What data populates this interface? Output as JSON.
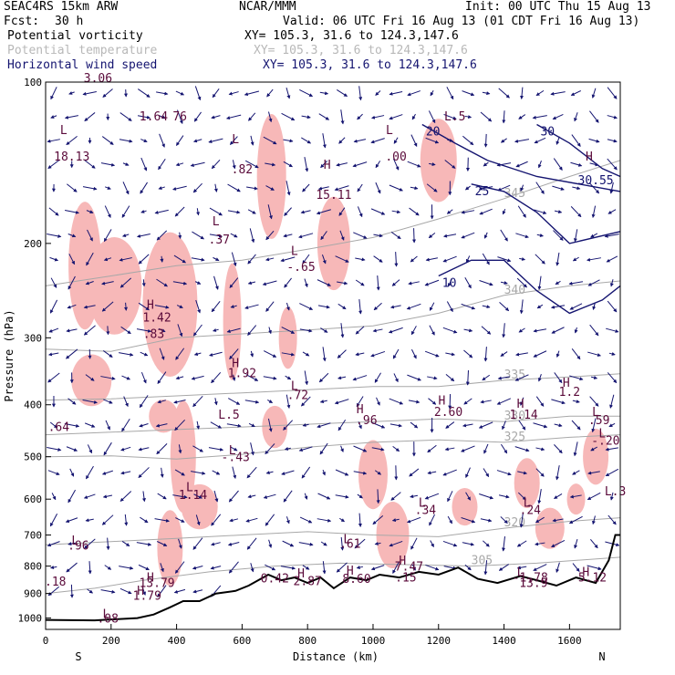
{
  "header": {
    "model": "SEAC4RS 15km ARW",
    "org": "NCAR/MMM",
    "init": "Init: 00 UTC Thu 15 Aug 13",
    "fcst_label": "Fcst:",
    "fcst_value": "30 h",
    "valid": "Valid: 06 UTC Fri 16 Aug 13 (01 CDT Fri 16 Aug 13)",
    "fields": [
      {
        "name": "Potential vorticity",
        "xy": "XY= 105.3, 31.6 to 124.3,147.6"
      },
      {
        "name": "Potential temperature",
        "xy": "XY= 105.3, 31.6 to 124.3,147.6"
      },
      {
        "name": "Horizontal wind speed",
        "xy": "XY= 105.3, 31.6 to 124.3,147.6"
      }
    ]
  },
  "colors": {
    "pv_fill": "#f7b8b8",
    "pv_contour": "#5a0a3a",
    "theta": "#a8a8a8",
    "wind": "#141470",
    "terrain": "#000000"
  },
  "chart_data": {
    "type": "cross-section",
    "xlabel": "Distance (km)",
    "ylabel": "Pressure (hPa)",
    "xlim": [
      0,
      1755
    ],
    "ylim": [
      1050,
      100
    ],
    "x_ticks": [
      0,
      200,
      400,
      600,
      800,
      1000,
      1200,
      1400,
      1600
    ],
    "y_ticks": [
      100,
      200,
      300,
      400,
      500,
      600,
      700,
      800,
      900,
      1000
    ],
    "endpoint_labels": {
      "left": "S",
      "right": "N"
    },
    "grid": false,
    "theta_contours": [
      {
        "label": "305",
        "points": [
          [
            0,
            900
          ],
          [
            150,
            880
          ],
          [
            300,
            850
          ],
          [
            500,
            820
          ],
          [
            700,
            800
          ],
          [
            900,
            790
          ],
          [
            1100,
            795
          ],
          [
            1300,
            800
          ],
          [
            1500,
            790
          ],
          [
            1755,
            770
          ]
        ]
      },
      {
        "label": "320",
        "points": [
          [
            0,
            730
          ],
          [
            200,
            720
          ],
          [
            400,
            710
          ],
          [
            600,
            700
          ],
          [
            800,
            690
          ],
          [
            1000,
            700
          ],
          [
            1200,
            705
          ],
          [
            1400,
            680
          ],
          [
            1600,
            660
          ],
          [
            1755,
            650
          ]
        ]
      },
      {
        "label": "325",
        "points": [
          [
            0,
            500
          ],
          [
            200,
            498
          ],
          [
            400,
            505
          ],
          [
            600,
            495
          ],
          [
            800,
            480
          ],
          [
            1000,
            470
          ],
          [
            1200,
            465
          ],
          [
            1400,
            470
          ],
          [
            1600,
            460
          ],
          [
            1755,
            455
          ]
        ]
      },
      {
        "label": "330",
        "points": [
          [
            0,
            455
          ],
          [
            200,
            450
          ],
          [
            400,
            445
          ],
          [
            600,
            440
          ],
          [
            800,
            435
          ],
          [
            1000,
            430
          ],
          [
            1200,
            425
          ],
          [
            1400,
            430
          ],
          [
            1600,
            420
          ],
          [
            1755,
            420
          ]
        ]
      },
      {
        "label": "335",
        "points": [
          [
            0,
            392
          ],
          [
            200,
            390
          ],
          [
            400,
            385
          ],
          [
            600,
            380
          ],
          [
            800,
            375
          ],
          [
            1000,
            370
          ],
          [
            1200,
            370
          ],
          [
            1400,
            360
          ],
          [
            1600,
            355
          ],
          [
            1755,
            350
          ]
        ]
      },
      {
        "label": "340",
        "points": [
          [
            0,
            315
          ],
          [
            200,
            318
          ],
          [
            400,
            300
          ],
          [
            600,
            295
          ],
          [
            800,
            290
          ],
          [
            1000,
            285
          ],
          [
            1200,
            270
          ],
          [
            1400,
            250
          ],
          [
            1600,
            240
          ],
          [
            1755,
            235
          ]
        ]
      },
      {
        "label": "345",
        "points": [
          [
            0,
            240
          ],
          [
            200,
            230
          ],
          [
            400,
            220
          ],
          [
            600,
            215
          ],
          [
            800,
            205
          ],
          [
            1000,
            195
          ],
          [
            1200,
            180
          ],
          [
            1400,
            165
          ],
          [
            1600,
            150
          ],
          [
            1755,
            140
          ]
        ]
      }
    ],
    "wind_speed_contours": [
      {
        "label": "20",
        "points": [
          [
            1150,
            120
          ],
          [
            1250,
            130
          ],
          [
            1350,
            140
          ],
          [
            1500,
            150
          ],
          [
            1755,
            160
          ]
        ]
      },
      {
        "label": "25",
        "points": [
          [
            1300,
            155
          ],
          [
            1400,
            160
          ],
          [
            1500,
            175
          ],
          [
            1600,
            200
          ],
          [
            1755,
            190
          ]
        ]
      },
      {
        "label": "30",
        "points": [
          [
            1500,
            120
          ],
          [
            1600,
            130
          ],
          [
            1700,
            145
          ],
          [
            1755,
            150
          ]
        ]
      },
      {
        "label": "10",
        "points": [
          [
            1200,
            230
          ],
          [
            1300,
            215
          ],
          [
            1400,
            215
          ],
          [
            1500,
            245
          ],
          [
            1600,
            270
          ],
          [
            1700,
            255
          ],
          [
            1755,
            240
          ]
        ]
      }
    ],
    "terrain": [
      [
        0,
        1008
      ],
      [
        150,
        1010
      ],
      [
        280,
        1000
      ],
      [
        330,
        985
      ],
      [
        380,
        955
      ],
      [
        420,
        930
      ],
      [
        470,
        930
      ],
      [
        520,
        900
      ],
      [
        580,
        890
      ],
      [
        620,
        870
      ],
      [
        680,
        830
      ],
      [
        720,
        850
      ],
      [
        760,
        840
      ],
      [
        800,
        860
      ],
      [
        840,
        840
      ],
      [
        880,
        880
      ],
      [
        930,
        840
      ],
      [
        980,
        850
      ],
      [
        1020,
        830
      ],
      [
        1080,
        840
      ],
      [
        1140,
        820
      ],
      [
        1200,
        830
      ],
      [
        1260,
        805
      ],
      [
        1320,
        845
      ],
      [
        1380,
        860
      ],
      [
        1450,
        835
      ],
      [
        1500,
        850
      ],
      [
        1560,
        870
      ],
      [
        1620,
        840
      ],
      [
        1680,
        860
      ],
      [
        1720,
        780
      ],
      [
        1740,
        700
      ],
      [
        1755,
        700
      ]
    ],
    "annotations": [
      {
        "text": "L",
        "x": 55,
        "y": 125,
        "color": "#5a0a3a"
      },
      {
        "text": "18.13",
        "x": 80,
        "y": 140,
        "color": "#5a0a3a"
      },
      {
        "text": "3.06",
        "x": 160,
        "y": 100,
        "color": "#5a0a3a"
      },
      {
        "text": "1.64",
        "x": 330,
        "y": 118,
        "color": "#5a0a3a"
      },
      {
        "text": "76",
        "x": 410,
        "y": 118,
        "color": "#5a0a3a"
      },
      {
        "text": "L",
        "x": 580,
        "y": 130,
        "color": "#5a0a3a"
      },
      {
        "text": ".82",
        "x": 600,
        "y": 148,
        "color": "#5a0a3a"
      },
      {
        "text": "H",
        "x": 860,
        "y": 145,
        "color": "#5a0a3a"
      },
      {
        "text": "15.11",
        "x": 880,
        "y": 165,
        "color": "#5a0a3a"
      },
      {
        "text": "L",
        "x": 1050,
        "y": 125,
        "color": "#5a0a3a"
      },
      {
        "text": ".00",
        "x": 1070,
        "y": 140,
        "color": "#5a0a3a"
      },
      {
        "text": "L.5",
        "x": 1250,
        "y": 118,
        "color": "#5a0a3a"
      },
      {
        "text": "H",
        "x": 1660,
        "y": 140,
        "color": "#5a0a3a"
      },
      {
        "text": "30.55",
        "x": 1680,
        "y": 155,
        "color": "#141470"
      },
      {
        "text": "L",
        "x": 520,
        "y": 185,
        "color": "#5a0a3a"
      },
      {
        "text": ".37",
        "x": 530,
        "y": 200,
        "color": "#5a0a3a"
      },
      {
        "text": "L",
        "x": 760,
        "y": 210,
        "color": "#5a0a3a"
      },
      {
        "text": "-.65",
        "x": 780,
        "y": 225,
        "color": "#5a0a3a"
      },
      {
        "text": "H",
        "x": 320,
        "y": 265,
        "color": "#5a0a3a"
      },
      {
        "text": "1.42",
        "x": 340,
        "y": 280,
        "color": "#5a0a3a"
      },
      {
        "text": ".83",
        "x": 330,
        "y": 300,
        "color": "#5a0a3a"
      },
      {
        "text": "H",
        "x": 580,
        "y": 340,
        "color": "#5a0a3a"
      },
      {
        "text": "1.92",
        "x": 600,
        "y": 355,
        "color": "#5a0a3a"
      },
      {
        "text": "L",
        "x": 760,
        "y": 375,
        "color": "#5a0a3a"
      },
      {
        "text": ".72",
        "x": 770,
        "y": 390,
        "color": "#5a0a3a"
      },
      {
        "text": "H",
        "x": 1210,
        "y": 400,
        "color": "#5a0a3a"
      },
      {
        "text": "2.60",
        "x": 1230,
        "y": 420,
        "color": "#5a0a3a"
      },
      {
        "text": "H",
        "x": 1590,
        "y": 370,
        "color": "#5a0a3a"
      },
      {
        "text": "1.2",
        "x": 1600,
        "y": 385,
        "color": "#5a0a3a"
      },
      {
        "text": "L.5",
        "x": 560,
        "y": 425,
        "color": "#5a0a3a"
      },
      {
        "text": "H",
        "x": 960,
        "y": 415,
        "color": "#5a0a3a"
      },
      {
        "text": ".96",
        "x": 980,
        "y": 435,
        "color": "#5a0a3a"
      },
      {
        "text": "H",
        "x": 1450,
        "y": 405,
        "color": "#5a0a3a"
      },
      {
        "text": "1.14",
        "x": 1460,
        "y": 425,
        "color": "#5a0a3a"
      },
      {
        "text": "L",
        "x": 1680,
        "y": 420,
        "color": "#5a0a3a"
      },
      {
        "text": ".59",
        "x": 1690,
        "y": 435,
        "color": "#5a0a3a"
      },
      {
        "text": "L",
        "x": 1700,
        "y": 460,
        "color": "#5a0a3a"
      },
      {
        "text": "-.20",
        "x": 1710,
        "y": 475,
        "color": "#5a0a3a"
      },
      {
        "text": ".64",
        "x": 40,
        "y": 448,
        "color": "#5a0a3a"
      },
      {
        "text": "L",
        "x": 570,
        "y": 495,
        "color": "#5a0a3a"
      },
      {
        "text": "-.43",
        "x": 580,
        "y": 510,
        "color": "#5a0a3a"
      },
      {
        "text": "L",
        "x": 440,
        "y": 580,
        "color": "#5a0a3a"
      },
      {
        "text": "1.14",
        "x": 450,
        "y": 600,
        "color": "#5a0a3a"
      },
      {
        "text": "L.3",
        "x": 1740,
        "y": 590,
        "color": "#5a0a3a"
      },
      {
        "text": "L",
        "x": 1150,
        "y": 620,
        "color": "#5a0a3a"
      },
      {
        "text": ".34",
        "x": 1160,
        "y": 640,
        "color": "#5a0a3a"
      },
      {
        "text": "L",
        "x": 1470,
        "y": 620,
        "color": "#5a0a3a"
      },
      {
        "text": ".24",
        "x": 1480,
        "y": 640,
        "color": "#5a0a3a"
      },
      {
        "text": "L",
        "x": 90,
        "y": 730,
        "color": "#5a0a3a"
      },
      {
        "text": ".96",
        "x": 100,
        "y": 745,
        "color": "#5a0a3a"
      },
      {
        "text": "L",
        "x": 920,
        "y": 725,
        "color": "#5a0a3a"
      },
      {
        "text": ".61",
        "x": 930,
        "y": 740,
        "color": "#5a0a3a"
      },
      {
        "text": "H",
        "x": 1090,
        "y": 795,
        "color": "#5a0a3a"
      },
      {
        "text": "7.47",
        "x": 1110,
        "y": 815,
        "color": "#5a0a3a"
      },
      {
        "text": "H",
        "x": 930,
        "y": 830,
        "color": "#5a0a3a"
      },
      {
        "text": "8.60",
        "x": 950,
        "y": 860,
        "color": "#5a0a3a"
      },
      {
        "text": "H",
        "x": 780,
        "y": 840,
        "color": "#5a0a3a"
      },
      {
        "text": "2.87",
        "x": 800,
        "y": 868,
        "color": "#5a0a3a"
      },
      {
        "text": "0.42",
        "x": 700,
        "y": 858,
        "color": "#5a0a3a"
      },
      {
        "text": "H",
        "x": 320,
        "y": 855,
        "color": "#5a0a3a"
      },
      {
        "text": "13.79",
        "x": 340,
        "y": 875,
        "color": "#5a0a3a"
      },
      {
        "text": "H",
        "x": 290,
        "y": 905,
        "color": "#5a0a3a"
      },
      {
        "text": "1.79",
        "x": 310,
        "y": 925,
        "color": "#5a0a3a"
      },
      {
        "text": ".18",
        "x": 30,
        "y": 870,
        "color": "#5a0a3a"
      },
      {
        "text": ".15",
        "x": 1100,
        "y": 855,
        "color": "#5a0a3a"
      },
      {
        "text": "L",
        "x": 1450,
        "y": 835,
        "color": "#5a0a3a"
      },
      {
        "text": "-1.78",
        "x": 1480,
        "y": 855,
        "color": "#5a0a3a"
      },
      {
        "text": "13.9",
        "x": 1490,
        "y": 875,
        "color": "#5a0a3a"
      },
      {
        "text": "H",
        "x": 1650,
        "y": 835,
        "color": "#5a0a3a"
      },
      {
        "text": "5.12",
        "x": 1670,
        "y": 855,
        "color": "#5a0a3a"
      },
      {
        "text": "L",
        "x": 185,
        "y": 1000,
        "color": "#5a0a3a"
      },
      {
        "text": ".08",
        "x": 190,
        "y": 1020,
        "color": "#5a0a3a"
      }
    ]
  }
}
